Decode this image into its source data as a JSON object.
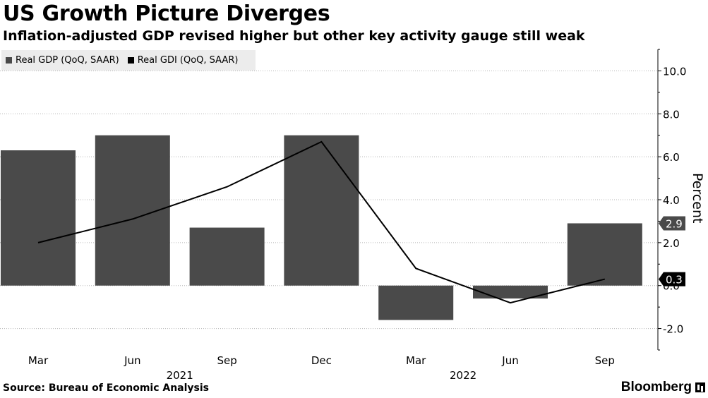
{
  "title": "US Growth Picture Diverges",
  "subtitle": "Inflation-adjusted GDP revised higher but other key activity gauge still weak",
  "legend": [
    {
      "label": "Real GDP (QoQ, SAAR)",
      "color": "#4a4a4a"
    },
    {
      "label": "Real GDI (QoQ, SAAR)",
      "color": "#000000"
    }
  ],
  "footer": {
    "source": "Source: Bureau of Economic Analysis",
    "brand": "Bloomberg"
  },
  "chart_data": {
    "type": "bar",
    "categories": [
      "Mar",
      "Jun",
      "Sep",
      "Dec",
      "Mar",
      "Jun",
      "Sep"
    ],
    "year_labels": [
      {
        "label": "2021",
        "category_index": 1.5
      },
      {
        "label": "2022",
        "category_index": 4.5
      }
    ],
    "series": [
      {
        "name": "Real GDP (QoQ, SAAR)",
        "type": "bar",
        "color": "#4a4a4a",
        "values": [
          6.3,
          7.0,
          2.7,
          7.0,
          -1.6,
          -0.6,
          2.9
        ]
      },
      {
        "name": "Real GDI (QoQ, SAAR)",
        "type": "line",
        "color": "#000000",
        "values": [
          2.0,
          3.1,
          4.6,
          6.7,
          0.8,
          -0.8,
          0.3
        ]
      }
    ],
    "ylabel": "Percent",
    "ylim": [
      -3.0,
      11.0
    ],
    "yticks": [
      -2.0,
      0.0,
      2.0,
      4.0,
      6.0,
      8.0,
      10.0
    ],
    "ytick_labels": [
      "-2.0",
      "0.0",
      "2.0",
      "4.0",
      "6.0",
      "8.0",
      "10.0"
    ],
    "end_labels": [
      {
        "text": "2.9",
        "value": 2.9,
        "series": "Real GDP (QoQ, SAAR)"
      },
      {
        "text": "0.3",
        "value": 0.3,
        "series": "Real GDI (QoQ, SAAR)"
      }
    ],
    "grid": true,
    "legend_position": "top-left",
    "y_axis_side": "right"
  }
}
